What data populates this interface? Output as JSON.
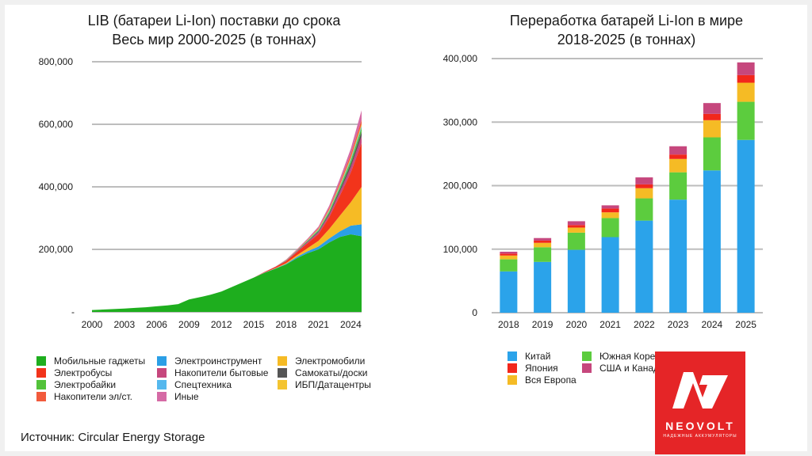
{
  "source": "Источник: Circular Energy Storage",
  "brand": {
    "name": "NEOVOLT",
    "tagline": "НАДЕЖНЫЕ АККУМУЛЯТОРЫ",
    "color": "#e52527"
  },
  "chart_data": [
    {
      "type": "area",
      "title_line1": "LIB (батареи Li-Ion) поставки до срока",
      "title_line2": "Весь мир 2000-2025 (в тоннах)",
      "ylim": [
        0,
        800000
      ],
      "xlim": [
        2000,
        2025
      ],
      "yticks": [
        0,
        200000,
        400000,
        600000,
        800000
      ],
      "ytick_labels": [
        "-",
        "200,000",
        "400,000",
        "600,000",
        "800,000"
      ],
      "xticks": [
        2000,
        2003,
        2006,
        2009,
        2012,
        2015,
        2018,
        2021,
        2024
      ],
      "xtick_labels": [
        "2000",
        "2003",
        "2006",
        "2009",
        "2012",
        "2015",
        "2018",
        "2021",
        "2024"
      ],
      "x": [
        2000,
        2001,
        2002,
        2003,
        2004,
        2005,
        2006,
        2007,
        2008,
        2009,
        2010,
        2011,
        2012,
        2013,
        2014,
        2015,
        2016,
        2017,
        2018,
        2019,
        2020,
        2021,
        2022,
        2023,
        2024,
        2025
      ],
      "series": [
        {
          "name": "Мобильные гаджеты",
          "color": "#1eae1e",
          "values": [
            6000,
            7500,
            9000,
            11000,
            13000,
            15000,
            18000,
            21000,
            25000,
            40000,
            47000,
            55000,
            65000,
            80000,
            95000,
            110000,
            125000,
            138000,
            152000,
            172000,
            188000,
            200000,
            222000,
            240000,
            248000,
            242000
          ]
        },
        {
          "name": "Электроинструмент",
          "color": "#2b9fe6",
          "values": [
            0,
            0,
            0,
            0,
            0,
            0,
            0,
            0,
            0,
            0,
            0,
            0,
            0,
            0,
            0,
            0,
            500,
            1000,
            2000,
            4000,
            6000,
            9000,
            13000,
            18000,
            28000,
            38000
          ]
        },
        {
          "name": "Электромобили",
          "color": "#f6bb25",
          "values": [
            0,
            0,
            0,
            0,
            0,
            0,
            0,
            0,
            0,
            0,
            0,
            0,
            0,
            0,
            0,
            0,
            500,
            1000,
            2000,
            5000,
            10000,
            18000,
            30000,
            50000,
            75000,
            120000
          ]
        },
        {
          "name": "Электробусы",
          "color": "#f2341b",
          "values": [
            0,
            0,
            0,
            0,
            0,
            0,
            0,
            0,
            0,
            0,
            0,
            0,
            0,
            0,
            0,
            0,
            1500,
            3500,
            6000,
            10000,
            16000,
            22000,
            38000,
            65000,
            95000,
            140000
          ]
        },
        {
          "name": "Накопители бытовые",
          "color": "#c6477d",
          "values": [
            0,
            0,
            0,
            0,
            0,
            0,
            0,
            0,
            0,
            0,
            0,
            0,
            0,
            0,
            0,
            0,
            500,
            1000,
            2000,
            3000,
            4000,
            6000,
            8000,
            12000,
            17000,
            22000
          ]
        },
        {
          "name": "Самокаты/доски",
          "color": "#555555",
          "values": [
            0,
            0,
            0,
            0,
            0,
            0,
            0,
            0,
            0,
            0,
            0,
            0,
            0,
            0,
            0,
            0,
            0,
            0,
            500,
            1000,
            2000,
            3000,
            5000,
            8000,
            11000,
            15000
          ]
        },
        {
          "name": "Электробайки",
          "color": "#53c23a",
          "values": [
            0,
            0,
            0,
            0,
            0,
            0,
            0,
            0,
            0,
            0,
            0,
            0,
            0,
            0,
            0,
            0,
            0,
            0,
            500,
            1000,
            2000,
            3000,
            5000,
            7000,
            10000,
            12000
          ]
        },
        {
          "name": "Спецтехника",
          "color": "#55b8ee",
          "values": [
            0,
            0,
            0,
            0,
            0,
            0,
            0,
            0,
            0,
            0,
            0,
            0,
            0,
            0,
            0,
            0,
            0,
            0,
            500,
            500,
            1000,
            2000,
            3000,
            4000,
            5000,
            6000
          ]
        },
        {
          "name": "ИБП/Датацентры",
          "color": "#f4c431",
          "values": [
            0,
            0,
            0,
            0,
            0,
            0,
            0,
            0,
            0,
            0,
            0,
            0,
            0,
            0,
            0,
            0,
            0,
            0,
            500,
            500,
            1000,
            2000,
            3000,
            4000,
            5000,
            6000
          ]
        },
        {
          "name": "Накопители эл/ст.",
          "color": "#f25a3c",
          "values": [
            0,
            0,
            0,
            0,
            0,
            0,
            0,
            0,
            0,
            0,
            0,
            0,
            0,
            0,
            0,
            0,
            0,
            0,
            500,
            1000,
            2000,
            3000,
            5000,
            7000,
            10000,
            14000
          ]
        },
        {
          "name": "Иные",
          "color": "#d56aa5",
          "values": [
            0,
            0,
            0,
            0,
            0,
            0,
            0,
            0,
            0,
            0,
            0,
            0,
            0,
            0,
            0,
            0,
            0,
            0,
            1000,
            2000,
            3000,
            5000,
            8000,
            12000,
            18000,
            30000
          ]
        }
      ],
      "legend_order": [
        [
          "Мобильные гаджеты",
          "Электроинструмент",
          "Электромобили"
        ],
        [
          "Электробусы",
          "Накопители бытовые",
          "Самокаты/доски"
        ],
        [
          "Электробайки",
          "Спецтехника",
          "ИБП/Датацентры"
        ],
        [
          "Накопители эл/ст.",
          "Иные"
        ]
      ]
    },
    {
      "type": "bar",
      "stacked": true,
      "title_line1": "Переработка батарей Li-Ion в мире",
      "title_line2": "2018-2025 (в тоннах)",
      "ylim": [
        0,
        400000
      ],
      "yticks": [
        0,
        100000,
        200000,
        300000,
        400000
      ],
      "ytick_labels": [
        "0",
        "100,000",
        "200,000",
        "300,000",
        "400,000"
      ],
      "categories": [
        "2018",
        "2019",
        "2020",
        "2021",
        "2022",
        "2023",
        "2024",
        "2025"
      ],
      "series": [
        {
          "name": "Китай",
          "color": "#2ba3ea",
          "values": [
            65000,
            80000,
            99000,
            119000,
            145000,
            178000,
            224000,
            272000
          ]
        },
        {
          "name": "Южная Корея",
          "color": "#5ccc3e",
          "values": [
            19000,
            23000,
            27000,
            30000,
            35000,
            43000,
            52000,
            60000
          ]
        },
        {
          "name": "Вся Европа",
          "color": "#f5bb25",
          "values": [
            6000,
            7000,
            8000,
            9000,
            16000,
            21000,
            27000,
            30000
          ]
        },
        {
          "name": "Япония",
          "color": "#f2271c",
          "values": [
            3000,
            3500,
            4000,
            6000,
            6000,
            7000,
            10000,
            12000
          ]
        },
        {
          "name": "США и Канада",
          "color": "#c6477d",
          "values": [
            3000,
            4000,
            6000,
            5000,
            11000,
            13000,
            17000,
            20000
          ]
        }
      ],
      "legend_order": [
        [
          "Китай",
          "Южная Корея"
        ],
        [
          "Япония",
          "США и Канада"
        ],
        [
          "Вся Европа"
        ]
      ]
    }
  ]
}
